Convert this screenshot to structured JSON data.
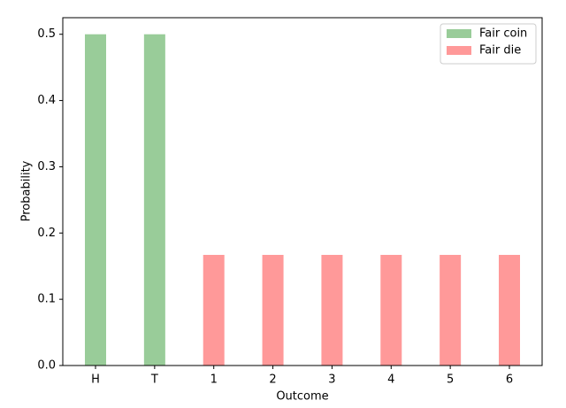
{
  "chart_data": {
    "type": "bar",
    "x_label": "Outcome",
    "y_label": "Probability",
    "categories": [
      "H",
      "T",
      "1",
      "2",
      "3",
      "4",
      "5",
      "6"
    ],
    "series": [
      {
        "name": "Fair coin",
        "color": "#99cc99",
        "values": [
          0.5,
          0.5,
          null,
          null,
          null,
          null,
          null,
          null
        ]
      },
      {
        "name": "Fair die",
        "color": "#ff9999",
        "values": [
          null,
          null,
          0.167,
          0.167,
          0.167,
          0.167,
          0.167,
          0.167
        ]
      }
    ],
    "ylim": [
      0,
      0.525
    ],
    "yticks": [
      {
        "value": 0,
        "label": "0.0"
      },
      0.1,
      0.2,
      0.3,
      0.4,
      0.5
    ],
    "legend": "upper right"
  }
}
